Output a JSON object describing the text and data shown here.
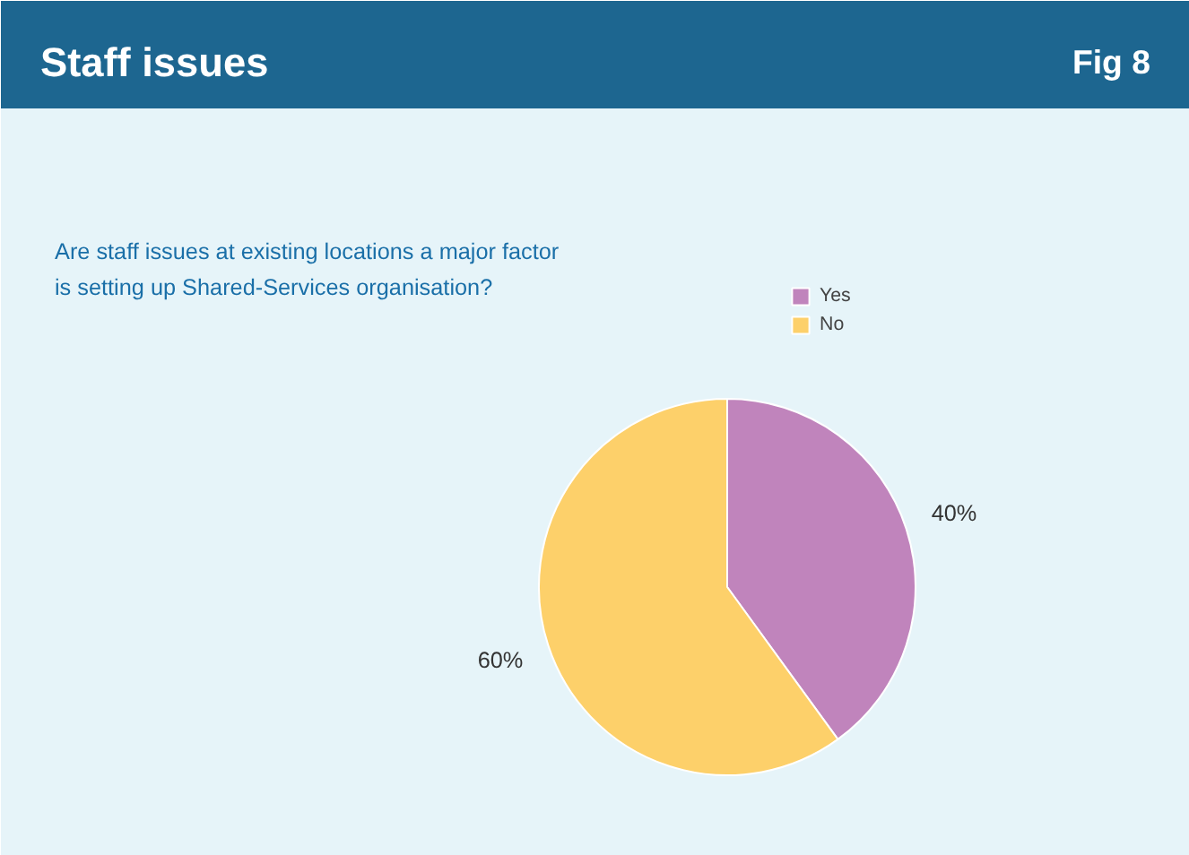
{
  "chart_data": {
    "type": "pie",
    "title": "Staff issues",
    "subtitle": "Are staff issues at existing locations a major factor is setting up Shared-Services organisation?",
    "annotations": [
      "Fig 8"
    ],
    "categories": [
      "Yes",
      "No"
    ],
    "values": [
      40,
      60
    ],
    "colors": [
      "#c084bc",
      "#fdd06a"
    ],
    "value_labels": [
      "40%",
      "60%"
    ],
    "legend": "top right"
  }
}
